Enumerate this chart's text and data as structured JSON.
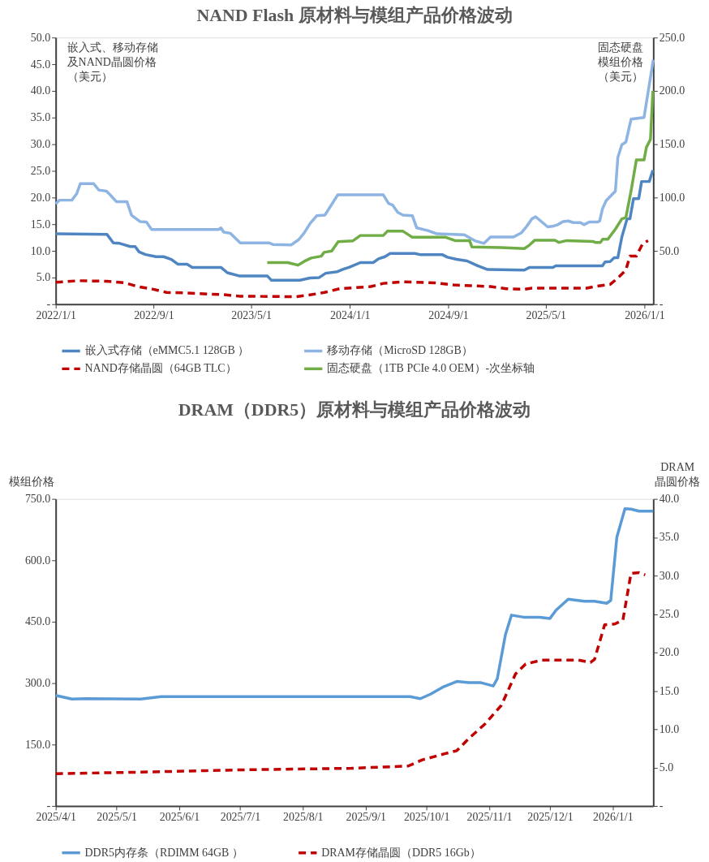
{
  "chart_data": [
    {
      "type": "line",
      "title": "NAND Flash 原材料与模组产品价格波动",
      "ylabel": "嵌入式、移动存储及NAND晶圆价格（美元）",
      "y2label": "固态硬盘模组价格（美元）",
      "xlim": [
        "2022-01-01",
        "2026-01-23"
      ],
      "xticks": [
        {
          "value": "2022-01-01",
          "label": "2022/1/1"
        },
        {
          "value": "2022-09-01",
          "label": "2022/9/1"
        },
        {
          "value": "2023-05-01",
          "label": "2023/5/1"
        },
        {
          "value": "2024-01-01",
          "label": "2024/1/1"
        },
        {
          "value": "2024-09-01",
          "label": "2024/9/1"
        },
        {
          "value": "2025-05-01",
          "label": "2025/5/1"
        },
        {
          "value": "2026-01-01",
          "label": "2026/1/1"
        }
      ],
      "ylim": [
        0,
        50
      ],
      "yticks": [
        {
          "value": 0,
          "label": "-"
        },
        {
          "value": 5,
          "label": "5.0"
        },
        {
          "value": 10,
          "label": "10.0"
        },
        {
          "value": 15,
          "label": "15.0"
        },
        {
          "value": 20,
          "label": "20.0"
        },
        {
          "value": 25,
          "label": "25.0"
        },
        {
          "value": 30,
          "label": "30.0"
        },
        {
          "value": 35,
          "label": "35.0"
        },
        {
          "value": 40,
          "label": "40.0"
        },
        {
          "value": 45,
          "label": "45.0"
        },
        {
          "value": 50,
          "label": "50.0"
        }
      ],
      "y2lim": [
        0,
        250
      ],
      "y2ticks": [
        {
          "value": 0,
          "label": "-"
        },
        {
          "value": 50,
          "label": "50.0"
        },
        {
          "value": 100,
          "label": "100.0"
        },
        {
          "value": 150,
          "label": "150.0"
        },
        {
          "value": 200,
          "label": "200.0"
        },
        {
          "value": 250,
          "label": "250.0"
        }
      ],
      "grid": false,
      "legend": "bottom",
      "series": [
        {
          "name": "嵌入式存储（eMMC5.1 128GB ）",
          "color": "#4f86c1",
          "line_style": "solid",
          "x": [
            "2022-01-01",
            "2022-05-08",
            "2022-05-24",
            "2022-06-09",
            "2022-06-22",
            "2022-07-05",
            "2022-07-17",
            "2022-07-27",
            "2022-08-12",
            "2022-09-07",
            "2022-09-26",
            "2022-10-15",
            "2022-10-31",
            "2022-11-23",
            "2022-12-06",
            "2023-02-15",
            "2023-03-03",
            "2023-04-01",
            "2023-06-10",
            "2023-06-20",
            "2023-08-30",
            "2023-09-24",
            "2023-10-17",
            "2023-11-02",
            "2023-12-01",
            "2023-12-17",
            "2023-12-30",
            "2024-01-27",
            "2024-02-28",
            "2024-03-12",
            "2024-03-28",
            "2024-04-10",
            "2024-06-10",
            "2024-06-23",
            "2024-08-17",
            "2024-08-30",
            "2024-09-22",
            "2024-10-18",
            "2024-11-13",
            "2024-12-08",
            "2025-03-09",
            "2025-03-22",
            "2025-05-19",
            "2025-05-26",
            "2025-09-19",
            "2025-09-25",
            "2025-10-08",
            "2025-10-18",
            "2025-10-27",
            "2025-11-06",
            "2025-11-19",
            "2025-11-26",
            "2025-12-05",
            "2025-12-18",
            "2025-12-25",
            "2026-01-13",
            "2026-01-22"
          ],
          "values": [
            13.2,
            13.1,
            11.5,
            11.4,
            11.1,
            10.8,
            10.8,
            9.8,
            9.3,
            8.9,
            8.9,
            8.4,
            7.5,
            7.5,
            6.9,
            6.9,
            5.9,
            5.3,
            5.3,
            4.5,
            4.5,
            4.9,
            5.0,
            5.8,
            6.1,
            6.6,
            6.9,
            7.8,
            7.8,
            8.5,
            8.9,
            9.5,
            9.5,
            9.3,
            9.3,
            8.8,
            8.4,
            8.1,
            7.2,
            6.5,
            6.4,
            6.9,
            6.9,
            7.2,
            7.2,
            7.9,
            8.0,
            8.7,
            8.7,
            12.6,
            16.0,
            16.0,
            19.8,
            19.8,
            23.0,
            23.0,
            25.1
          ]
        },
        {
          "name": "移动存储（MicroSD 128GB）",
          "color": "#8db4e2",
          "line_style": "solid",
          "x": [
            "2022-01-01",
            "2022-01-10",
            "2022-02-10",
            "2022-02-22",
            "2022-03-03",
            "2022-04-05",
            "2022-04-18",
            "2022-05-07",
            "2022-05-16",
            "2022-06-01",
            "2022-06-27",
            "2022-07-08",
            "2022-07-29",
            "2022-08-14",
            "2022-08-27",
            "2023-02-09",
            "2023-02-15",
            "2023-02-22",
            "2023-03-10",
            "2023-04-04",
            "2023-06-14",
            "2023-06-24",
            "2023-08-08",
            "2023-08-27",
            "2023-09-09",
            "2023-09-25",
            "2023-10-11",
            "2023-10-31",
            "2023-12-02",
            "2024-03-24",
            "2024-04-06",
            "2024-04-16",
            "2024-04-29",
            "2024-05-12",
            "2024-06-04",
            "2024-06-15",
            "2024-07-13",
            "2024-08-04",
            "2024-10-11",
            "2024-11-06",
            "2024-11-29",
            "2024-12-15",
            "2025-02-10",
            "2025-03-02",
            "2025-03-15",
            "2025-03-28",
            "2025-04-06",
            "2025-05-06",
            "2025-05-18",
            "2025-05-31",
            "2025-06-13",
            "2025-06-26",
            "2025-07-09",
            "2025-07-26",
            "2025-08-04",
            "2025-08-17",
            "2025-09-06",
            "2025-09-12",
            "2025-09-19",
            "2025-09-28",
            "2025-10-21",
            "2025-10-27",
            "2025-11-06",
            "2025-11-16",
            "2025-11-29",
            "2025-12-31",
            "2026-01-23"
          ],
          "values": [
            18.8,
            19.5,
            19.5,
            20.7,
            22.6,
            22.6,
            21.4,
            21.2,
            20.5,
            19.2,
            19.2,
            16.7,
            15.5,
            15.4,
            14.0,
            14.0,
            14.3,
            13.5,
            13.3,
            11.5,
            11.5,
            11.2,
            11.1,
            12.1,
            13.3,
            15.2,
            16.6,
            16.7,
            20.5,
            20.5,
            18.9,
            18.6,
            17.2,
            16.7,
            16.6,
            14.3,
            13.8,
            13.2,
            13.0,
            11.9,
            11.4,
            12.6,
            12.6,
            13.4,
            14.6,
            16.0,
            16.4,
            14.5,
            14.6,
            14.9,
            15.5,
            15.6,
            15.3,
            15.3,
            14.9,
            15.4,
            15.4,
            15.6,
            17.9,
            19.4,
            21.2,
            27.5,
            29.9,
            30.4,
            34.7,
            35.0,
            45.8
          ]
        },
        {
          "name": "NAND存储晶圆（64GB TLC）",
          "color": "#c00000",
          "line_style": "dashed",
          "x": [
            "2022-01-01",
            "2022-02-26",
            "2022-05-08",
            "2022-06-22",
            "2022-07-24",
            "2022-08-31",
            "2022-10-03",
            "2022-11-23",
            "2023-01-13",
            "2023-02-21",
            "2023-04-01",
            "2023-08-20",
            "2023-09-21",
            "2023-10-30",
            "2023-12-07",
            "2024-02-22",
            "2024-03-24",
            "2024-05-09",
            "2024-08-01",
            "2024-09-15",
            "2024-12-15",
            "2025-01-23",
            "2025-03-09",
            "2025-03-28",
            "2025-08-11",
            "2025-08-30",
            "2025-10-08",
            "2025-10-27",
            "2025-11-16",
            "2025-11-26",
            "2025-12-12",
            "2025-12-28",
            "2026-01-10"
          ],
          "values": [
            4.1,
            4.4,
            4.3,
            4.0,
            3.3,
            2.8,
            2.2,
            2.1,
            1.9,
            1.8,
            1.5,
            1.4,
            1.7,
            2.2,
            2.9,
            3.3,
            3.9,
            4.2,
            4.0,
            3.6,
            3.3,
            2.9,
            2.8,
            3.0,
            3.0,
            3.3,
            3.7,
            4.9,
            6.4,
            9.0,
            9.0,
            11.4,
            11.9
          ]
        },
        {
          "name": "固态硬盘（1TB PCIe 4.0 OEM）-次坐标轴",
          "color": "#70ad47",
          "line_style": "solid",
          "axis": "y2",
          "x": [
            "2023-06-10",
            "2023-07-31",
            "2023-08-25",
            "2023-09-10",
            "2023-09-27",
            "2023-10-22",
            "2023-10-29",
            "2023-11-17",
            "2023-12-03",
            "2024-01-08",
            "2024-01-27",
            "2024-03-24",
            "2024-04-03",
            "2024-05-12",
            "2024-06-04",
            "2024-08-26",
            "2024-09-18",
            "2024-10-24",
            "2024-10-30",
            "2025-01-10",
            "2025-03-09",
            "2025-03-22",
            "2025-04-04",
            "2025-05-24",
            "2025-06-03",
            "2025-06-22",
            "2025-08-26",
            "2025-09-01",
            "2025-09-14",
            "2025-09-19",
            "2025-10-02",
            "2025-10-21",
            "2025-11-06",
            "2025-11-16",
            "2025-11-29",
            "2025-12-12",
            "2025-12-31",
            "2026-01-06",
            "2026-01-16",
            "2026-01-22"
          ],
          "values": [
            39,
            39,
            36.6,
            40.2,
            43.3,
            45,
            48.6,
            49.8,
            58.6,
            59.3,
            64.4,
            64.4,
            68.4,
            68.4,
            62.7,
            62.7,
            59.6,
            59.6,
            53.6,
            53.1,
            52.1,
            55.5,
            60,
            60,
            57.9,
            59.6,
            58.8,
            57.9,
            57.9,
            60.8,
            60.8,
            70.4,
            80,
            81.2,
            106.4,
            135.2,
            135.2,
            147.2,
            154.4,
            200
          ]
        }
      ]
    },
    {
      "type": "line",
      "title": "DRAM（DDR5）原材料与模组产品价格波动",
      "ylabel": "模组价格",
      "y2label": "DRAM晶圆价格",
      "xlim": [
        "2025-04-01",
        "2026-01-21"
      ],
      "xticks": [
        {
          "value": "2025-04-01",
          "label": "2025/4/1"
        },
        {
          "value": "2025-05-01",
          "label": "2025/5/1"
        },
        {
          "value": "2025-06-01",
          "label": "2025/6/1"
        },
        {
          "value": "2025-07-01",
          "label": "2025/7/1"
        },
        {
          "value": "2025-08-01",
          "label": "2025/8/1"
        },
        {
          "value": "2025-09-01",
          "label": "2025/9/1"
        },
        {
          "value": "2025-10-01",
          "label": "2025/10/1"
        },
        {
          "value": "2025-11-01",
          "label": "2025/11/1"
        },
        {
          "value": "2025-12-01",
          "label": "2025/12/1"
        },
        {
          "value": "2026-01-01",
          "label": "2026/1/1"
        }
      ],
      "ylim": [
        0,
        750
      ],
      "yticks": [
        {
          "value": 0,
          "label": "-"
        },
        {
          "value": 150,
          "label": "150.0"
        },
        {
          "value": 300,
          "label": "300.0"
        },
        {
          "value": 450,
          "label": "450.0"
        },
        {
          "value": 600,
          "label": "600.0"
        },
        {
          "value": 750,
          "label": "750.0"
        }
      ],
      "y2lim": [
        0,
        40
      ],
      "y2ticks": [
        {
          "value": 0,
          "label": "-"
        },
        {
          "value": 5,
          "label": "5.0"
        },
        {
          "value": 10,
          "label": "10.0"
        },
        {
          "value": 15,
          "label": "15.0"
        },
        {
          "value": 20,
          "label": "20.0"
        },
        {
          "value": 25,
          "label": "25.0"
        },
        {
          "value": 30,
          "label": "30.0"
        },
        {
          "value": 35,
          "label": "35.0"
        },
        {
          "value": 40,
          "label": "40.0"
        }
      ],
      "grid": false,
      "legend": "bottom",
      "series": [
        {
          "name": "DDR5内存条（RDIMM 64GB ）",
          "color": "#5b9bd5",
          "line_style": "solid",
          "x": [
            "2025-04-01",
            "2025-04-09",
            "2025-04-16",
            "2025-05-13",
            "2025-05-23",
            "2025-09-23",
            "2025-09-28",
            "2025-10-03",
            "2025-10-09",
            "2025-10-16",
            "2025-10-22",
            "2025-10-28",
            "2025-11-03",
            "2025-11-05",
            "2025-11-09",
            "2025-11-12",
            "2025-11-18",
            "2025-11-26",
            "2025-12-01",
            "2025-12-04",
            "2025-12-10",
            "2025-12-18",
            "2025-12-23",
            "2025-12-29",
            "2025-12-31",
            "2026-01-03",
            "2026-01-07",
            "2026-01-10",
            "2026-01-14",
            "2026-01-21"
          ],
          "values": [
            270,
            261,
            262,
            261,
            267,
            267,
            262,
            273,
            290,
            304,
            301,
            301,
            293,
            311,
            418,
            466,
            461,
            461,
            458,
            478,
            505,
            500,
            500,
            495,
            502,
            656,
            726,
            725,
            720,
            720
          ]
        },
        {
          "name": "DRAM存储晶圆（DDR5 16Gb）",
          "color": "#c00000",
          "line_style": "dashed",
          "axis": "y2",
          "x": [
            "2025-04-01",
            "2025-05-13",
            "2025-07-01",
            "2025-08-25",
            "2025-09-22",
            "2025-09-29",
            "2025-10-10",
            "2025-10-16",
            "2025-10-22",
            "2025-10-30",
            "2025-11-07",
            "2025-11-14",
            "2025-11-19",
            "2025-11-27",
            "2025-12-15",
            "2025-12-21",
            "2025-12-23",
            "2025-12-28",
            "2026-01-02",
            "2026-01-06",
            "2026-01-10",
            "2026-01-14",
            "2026-01-17"
          ],
          "values": [
            4.2,
            4.4,
            4.7,
            4.9,
            5.2,
            6.0,
            6.8,
            7.2,
            8.8,
            10.7,
            13.1,
            17.2,
            18.5,
            19.0,
            19.0,
            18.7,
            19.1,
            23.6,
            23.7,
            24.2,
            30.3,
            30.4,
            30.1
          ]
        }
      ]
    }
  ]
}
